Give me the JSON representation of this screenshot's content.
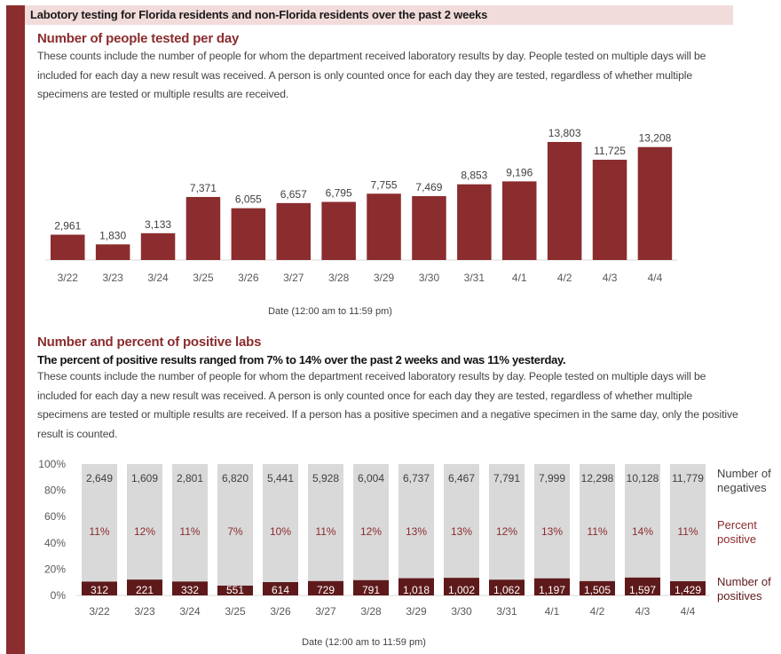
{
  "header": {
    "title": "Labotory testing for Florida residents and non-Florida residents over the past 2 weeks"
  },
  "section1": {
    "title": "Number of people tested per day",
    "description": "These counts include the number of people for whom the department received laboratory results by day. People tested on multiple days will be included for each day a new result was received. A person is only counted once for each day they are tested, regardless of whether multiple specimens are tested or multiple results are received."
  },
  "section2": {
    "title": "Number and percent of positive labs",
    "summary": "The percent of positive results ranged from 7% to 14%  over the past 2 weeks and was 11% yesterday.",
    "description": "These counts include the number of people for whom the department received laboratory results by day. People tested on multiple days will be included for each day a new result was received. A person is only counted once for each day they are tested, regardless of whether multiple specimens are tested or multiple results are received. If a person has a positive specimen and a negative specimen in the same day, only the positive result is counted."
  },
  "colors": {
    "accent": "#8b2c2e",
    "positive": "#5e1a1b",
    "negative": "#d9d9d9",
    "header_band": "#f2dcdb"
  },
  "chart_data": [
    {
      "type": "bar",
      "title": "Number of people tested per day",
      "xlabel": "Date (12:00 am to 11:59 pm)",
      "ylabel": "",
      "categories": [
        "3/22",
        "3/23",
        "3/24",
        "3/25",
        "3/26",
        "3/27",
        "3/28",
        "3/29",
        "3/30",
        "3/31",
        "4/1",
        "4/2",
        "4/3",
        "4/4"
      ],
      "values": [
        2961,
        1830,
        3133,
        7371,
        6055,
        6657,
        6795,
        7755,
        7469,
        8853,
        9196,
        13803,
        11725,
        13208
      ],
      "value_labels": [
        "2,961",
        "1,830",
        "3,133",
        "7,371",
        "6,055",
        "6,657",
        "6,795",
        "7,755",
        "7,469",
        "8,853",
        "9,196",
        "13,803",
        "11,725",
        "13,208"
      ],
      "ylim": [
        0,
        14000
      ],
      "grid": false,
      "legend": "none"
    },
    {
      "type": "bar",
      "stacked": "percent",
      "title": "Number and percent of positive labs",
      "xlabel": "Date (12:00 am to 11:59 pm)",
      "ylabel": "",
      "categories": [
        "3/22",
        "3/23",
        "3/24",
        "3/25",
        "3/26",
        "3/27",
        "3/28",
        "3/29",
        "3/30",
        "3/31",
        "4/1",
        "4/2",
        "4/3",
        "4/4"
      ],
      "yticks": [
        "0%",
        "20%",
        "40%",
        "60%",
        "80%",
        "100%"
      ],
      "ylim": [
        0,
        100
      ],
      "series": [
        {
          "name": "Number of positives",
          "values": [
            312,
            221,
            332,
            551,
            614,
            729,
            791,
            1018,
            1002,
            1062,
            1197,
            1505,
            1597,
            1429
          ],
          "labels": [
            "312",
            "221",
            "332",
            "551",
            "614",
            "729",
            "791",
            "1,018",
            "1,002",
            "1,062",
            "1,197",
            "1,505",
            "1,597",
            "1,429"
          ]
        },
        {
          "name": "Number of negatives",
          "values": [
            2649,
            1609,
            2801,
            6820,
            5441,
            5928,
            6004,
            6737,
            6467,
            7791,
            7999,
            12298,
            10128,
            11779
          ],
          "labels": [
            "2,649",
            "1,609",
            "2,801",
            "6,820",
            "5,441",
            "5,928",
            "6,004",
            "6,737",
            "6,467",
            "7,791",
            "7,999",
            "12,298",
            "10,128",
            "11,779"
          ]
        }
      ],
      "percent_positive": [
        "11%",
        "12%",
        "11%",
        "7%",
        "10%",
        "11%",
        "12%",
        "13%",
        "13%",
        "12%",
        "13%",
        "11%",
        "14%",
        "11%"
      ],
      "legend_labels": {
        "negatives": "Number of negatives",
        "percent": "Percent positive",
        "positives": "Number of positives"
      },
      "legend": "right"
    }
  ]
}
